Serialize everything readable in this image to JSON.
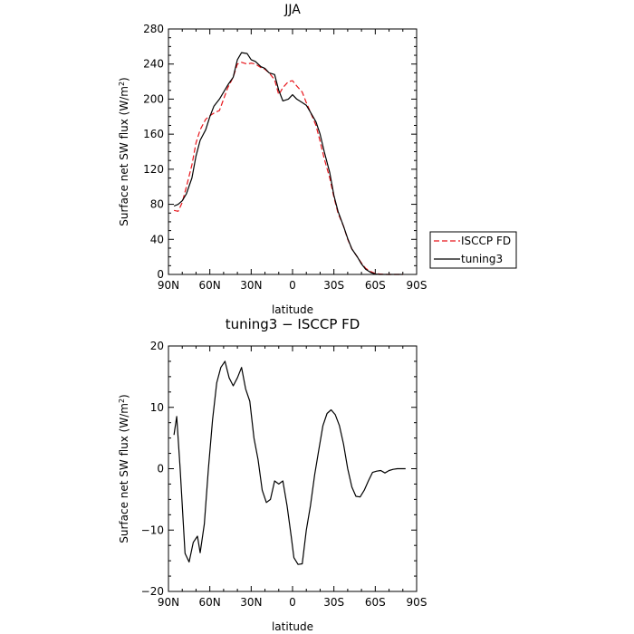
{
  "chart_data": [
    {
      "type": "line",
      "title": "JJA",
      "xlabel": "latitude",
      "ylabel_prefix": "Surface net SW flux (W/m",
      "ylabel_sup": "2",
      "ylabel_suffix": ")",
      "xlim": [
        90,
        -90
      ],
      "ylim": [
        0,
        280
      ],
      "x_ticks": [
        90,
        60,
        30,
        0,
        -30,
        -60,
        -90
      ],
      "x_tick_labels": [
        "90N",
        "60N",
        "30N",
        "0",
        "30S",
        "60S",
        "90S"
      ],
      "y_ticks": [
        0,
        40,
        80,
        120,
        160,
        200,
        240,
        280
      ],
      "y_tick_labels": [
        "0",
        "40",
        "80",
        "120",
        "160",
        "200",
        "240",
        "280"
      ],
      "legend": "outside-right",
      "series": [
        {
          "name": "ISCCP FD",
          "color": "#e8141a",
          "dash": "dashed",
          "x": [
            86,
            83,
            80,
            77,
            73,
            70,
            67,
            63,
            60,
            57,
            53,
            50,
            47,
            43,
            40,
            37,
            33,
            30,
            27,
            23,
            20,
            17,
            13,
            10,
            7,
            3,
            0,
            -3,
            -7,
            -10,
            -13,
            -17,
            -20,
            -23,
            -27,
            -30,
            -33,
            -37,
            -40,
            -43,
            -47,
            -50,
            -53,
            -57,
            -60,
            -63,
            -67,
            -70,
            -73,
            -77,
            -80
          ],
          "y": [
            73,
            72,
            82,
            100,
            125,
            150,
            165,
            177,
            181,
            184,
            187,
            200,
            213,
            225,
            240,
            242,
            240,
            241,
            240,
            236,
            234,
            230,
            222,
            205,
            213,
            220,
            221,
            215,
            208,
            196,
            185,
            170,
            152,
            132,
            110,
            88,
            70,
            55,
            40,
            29,
            20,
            13,
            7,
            3,
            1,
            0.5,
            0,
            0,
            0,
            0,
            0
          ]
        },
        {
          "name": "tuning3",
          "color": "#000000",
          "dash": "solid",
          "x": [
            86,
            83,
            80,
            77,
            73,
            70,
            67,
            63,
            60,
            57,
            53,
            50,
            47,
            43,
            40,
            37,
            33,
            30,
            27,
            23,
            20,
            17,
            13,
            10,
            7,
            3,
            0,
            -3,
            -7,
            -10,
            -13,
            -17,
            -20,
            -23,
            -27,
            -30,
            -33,
            -37,
            -40,
            -43,
            -47,
            -50,
            -53,
            -57,
            -60,
            -63,
            -67,
            -70,
            -73,
            -77,
            -80
          ],
          "y": [
            78,
            80,
            84,
            92,
            110,
            135,
            153,
            165,
            180,
            192,
            200,
            208,
            216,
            225,
            245,
            253,
            252,
            245,
            243,
            237,
            235,
            230,
            228,
            210,
            198,
            200,
            205,
            200,
            196,
            193,
            185,
            174,
            160,
            140,
            116,
            90,
            72,
            55,
            41,
            29,
            20,
            12,
            6,
            2,
            0.5,
            0,
            0,
            0,
            0,
            0,
            0
          ]
        }
      ]
    },
    {
      "type": "line",
      "title": "tuning3 − ISCCP FD",
      "xlabel": "latitude",
      "ylabel_prefix": "Surface net SW flux (W/m",
      "ylabel_sup": "2",
      "ylabel_suffix": ")",
      "xlim": [
        90,
        -90
      ],
      "ylim": [
        -20,
        20
      ],
      "x_ticks": [
        90,
        60,
        30,
        0,
        -30,
        -60,
        -90
      ],
      "x_tick_labels": [
        "90N",
        "60N",
        "30N",
        "0",
        "30S",
        "60S",
        "90S"
      ],
      "y_ticks": [
        -20,
        -10,
        0,
        10,
        20
      ],
      "y_tick_labels": [
        "−20",
        "−10",
        "0",
        "10",
        "20"
      ],
      "series": [
        {
          "color": "#000000",
          "dash": "solid",
          "x": [
            86,
            84,
            81.5,
            78,
            75,
            72,
            69,
            67,
            64,
            61,
            58,
            55,
            52,
            49,
            46,
            43,
            40,
            37,
            34,
            31,
            28,
            25,
            22,
            19,
            16,
            13,
            10,
            7,
            4,
            1,
            -1,
            -4,
            -7,
            -10,
            -13,
            -16,
            -19,
            -22,
            -25,
            -28,
            -31,
            -34,
            -37,
            -40,
            -43,
            -46,
            -49,
            -52,
            -55,
            -58,
            -61,
            -64,
            -67,
            -70,
            -73,
            -76,
            -79,
            -82
          ],
          "y": [
            5.5,
            8.5,
            0,
            -13.8,
            -15.2,
            -12,
            -11,
            -13.7,
            -9,
            0,
            8,
            14,
            16.5,
            17.5,
            14.8,
            13.5,
            14.8,
            16.5,
            13,
            11,
            5,
            1.5,
            -3.5,
            -5.5,
            -5,
            -2,
            -2.5,
            -2,
            -6,
            -11,
            -14.5,
            -15.6,
            -15.5,
            -10,
            -6,
            -1,
            3,
            7,
            9,
            9.6,
            8.8,
            7,
            4,
            0,
            -3,
            -4.5,
            -4.6,
            -3.5,
            -2,
            -0.6,
            -0.4,
            -0.3,
            -0.7,
            -0.3,
            -0.1,
            0,
            0,
            0
          ]
        }
      ]
    }
  ]
}
